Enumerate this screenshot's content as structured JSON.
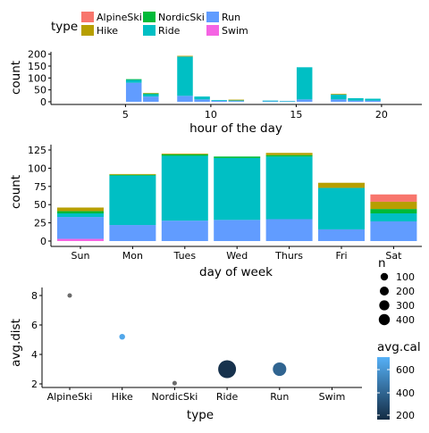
{
  "colors": {
    "AlpineSki": "#F8766D",
    "Hike": "#B79F00",
    "NordicSki": "#00BA38",
    "Ride": "#00BFC4",
    "Run": "#619CFF",
    "Swim": "#F564E3"
  },
  "legend_type": {
    "title": "type",
    "items": [
      "AlpineSki",
      "Hike",
      "NordicSki",
      "Ride",
      "Run",
      "Swim"
    ]
  },
  "legend_n": {
    "title": "n",
    "labels": [
      "100",
      "200",
      "300",
      "400"
    ],
    "values": [
      100,
      200,
      300,
      400
    ]
  },
  "legend_cal": {
    "title": "avg.cal",
    "labels": [
      "600",
      "400",
      "200"
    ],
    "values": [
      600,
      400,
      200
    ],
    "low_color": "#132B43",
    "high_color": "#56B1F7"
  },
  "chart_data": [
    {
      "type": "bar",
      "stacked": true,
      "xlabel": "hour of the day",
      "ylabel": "count",
      "xticks": [
        5,
        10,
        15,
        20
      ],
      "xlim": [
        0,
        22
      ],
      "ylim": [
        0,
        210
      ],
      "yticks": [
        0,
        50,
        100,
        150,
        200
      ],
      "bars": [
        {
          "x": 5.5,
          "stack": {
            "Run": 80,
            "Ride": 12,
            "NordicSki": 3
          }
        },
        {
          "x": 6.5,
          "stack": {
            "Run": 22,
            "Ride": 10,
            "NordicSki": 3,
            "Hike": 2
          }
        },
        {
          "x": 8.5,
          "stack": {
            "Run": 25,
            "Ride": 165,
            "Hike": 3
          }
        },
        {
          "x": 9.5,
          "stack": {
            "Run": 10,
            "Ride": 12
          }
        },
        {
          "x": 10.5,
          "stack": {
            "Run": 4,
            "Ride": 3
          }
        },
        {
          "x": 11.5,
          "stack": {
            "Run": 3,
            "Ride": 3,
            "Hike": 3
          }
        },
        {
          "x": 13.5,
          "stack": {
            "Run": 2,
            "Ride": 3
          }
        },
        {
          "x": 14.5,
          "stack": {
            "Run": 2,
            "Ride": 1
          }
        },
        {
          "x": 15.5,
          "stack": {
            "Run": 10,
            "Ride": 135
          }
        },
        {
          "x": 17.5,
          "stack": {
            "Run": 10,
            "Ride": 20,
            "Hike": 3
          }
        },
        {
          "x": 18.5,
          "stack": {
            "Run": 5,
            "Ride": 10
          }
        },
        {
          "x": 19.5,
          "stack": {
            "Run": 5,
            "Ride": 8
          }
        }
      ]
    },
    {
      "type": "bar",
      "stacked": true,
      "xlabel": "day of week",
      "ylabel": "count",
      "categories": [
        "Sun",
        "Mon",
        "Tues",
        "Wed",
        "Thurs",
        "Fri",
        "Sat"
      ],
      "ylim": [
        0,
        125
      ],
      "yticks": [
        0,
        25,
        50,
        75,
        100,
        125
      ],
      "stacks": [
        {
          "Swim": 3,
          "Run": 30,
          "Ride": 5,
          "NordicSki": 3,
          "Hike": 5
        },
        {
          "Run": 22,
          "Ride": 68,
          "NordicSki": 1,
          "Hike": 1
        },
        {
          "Run": 28,
          "Ride": 89,
          "NordicSki": 2,
          "Hike": 1
        },
        {
          "Run": 29,
          "Ride": 85,
          "NordicSki": 2
        },
        {
          "Run": 30,
          "Ride": 86,
          "NordicSki": 2,
          "Hike": 3
        },
        {
          "Run": 16,
          "Ride": 57,
          "Hike": 7
        },
        {
          "Run": 27,
          "Ride": 11,
          "NordicSki": 6,
          "Hike": 10,
          "AlpineSki": 10
        }
      ]
    },
    {
      "type": "scatter",
      "xlabel": "type",
      "ylabel": "avg.dist",
      "categories": [
        "AlpineSki",
        "Hike",
        "NordicSki",
        "Ride",
        "Run",
        "Swim"
      ],
      "ylim": [
        1.6,
        8.4
      ],
      "yticks": [
        2,
        4,
        6,
        8
      ],
      "points": [
        {
          "type": "AlpineSki",
          "avg_dist": 8.0,
          "n": 5,
          "avg_cal": null
        },
        {
          "type": "Hike",
          "avg_dist": 5.2,
          "n": 15,
          "avg_cal": 660
        },
        {
          "type": "NordicSki",
          "avg_dist": 2.05,
          "n": 5,
          "avg_cal": null
        },
        {
          "type": "Ride",
          "avg_dist": 3.0,
          "n": 400,
          "avg_cal": 170
        },
        {
          "type": "Run",
          "avg_dist": 3.0,
          "n": 200,
          "avg_cal": 380
        }
      ]
    }
  ]
}
